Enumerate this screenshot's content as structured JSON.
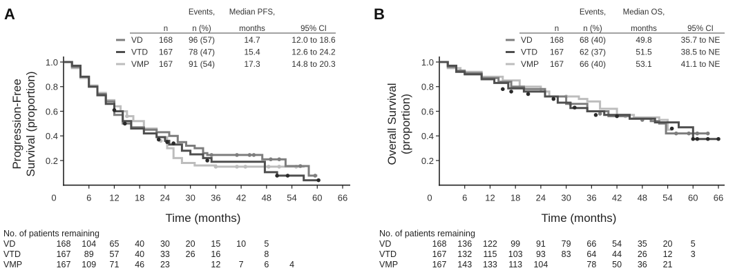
{
  "colors": {
    "VD": "#7d7d7d",
    "VTD": "#4e4e4e",
    "VMP": "#bdbdbd",
    "censor": "#2a2a2a"
  },
  "chart_data": [
    {
      "panel": "A",
      "type": "line",
      "subtype": "kaplan-meier",
      "xlabel": "Time (months)",
      "ylabel_lines": [
        "Progression-Free",
        "Survival (proportion)"
      ],
      "xlim": [
        0,
        66
      ],
      "ylim": [
        0,
        1.0
      ],
      "xticks": [
        "0",
        "6",
        "12",
        "18",
        "24",
        "30",
        "36",
        "42",
        "48",
        "54",
        "60",
        "66"
      ],
      "yticks": [
        "1.0",
        "0.8",
        "0.6",
        "0.4",
        "0.2"
      ],
      "legend": {
        "headers": [
          "n",
          "Events,",
          "n (%)",
          "Median PFS,",
          "months",
          "95% CI"
        ],
        "rows": [
          {
            "arm": "VD",
            "n": "168",
            "events": "96 (57)",
            "median": "14.7",
            "ci": "12.0 to 18.6"
          },
          {
            "arm": "VTD",
            "n": "167",
            "events": "78 (47)",
            "median": "15.4",
            "ci": "12.6 to 24.2"
          },
          {
            "arm": "VMP",
            "n": "167",
            "events": "91 (54)",
            "median": "17.3",
            "ci": "14.8 to 20.3"
          }
        ]
      },
      "series": [
        {
          "name": "VD",
          "points": [
            [
              0,
              1.0
            ],
            [
              2,
              0.96
            ],
            [
              4,
              0.88
            ],
            [
              6,
              0.8
            ],
            [
              8,
              0.74
            ],
            [
              10,
              0.68
            ],
            [
              12,
              0.57
            ],
            [
              14,
              0.5
            ],
            [
              16,
              0.47
            ],
            [
              19,
              0.45
            ],
            [
              22,
              0.43
            ],
            [
              25,
              0.4
            ],
            [
              27,
              0.35
            ],
            [
              29,
              0.32
            ],
            [
              31,
              0.3
            ],
            [
              33,
              0.26
            ],
            [
              34,
              0.245
            ],
            [
              47,
              0.21
            ],
            [
              52.5,
              0.155
            ],
            [
              58,
              0.077
            ],
            [
              60,
              0.077
            ]
          ],
          "censored": [
            [
              35,
              0.245
            ],
            [
              41,
              0.245
            ],
            [
              44,
              0.245
            ],
            [
              45,
              0.245
            ],
            [
              49,
              0.21
            ],
            [
              51,
              0.21
            ],
            [
              56,
              0.155
            ],
            [
              59.5,
              0.077
            ]
          ]
        },
        {
          "name": "VTD",
          "points": [
            [
              0,
              1.0
            ],
            [
              2,
              0.97
            ],
            [
              4,
              0.88
            ],
            [
              6,
              0.8
            ],
            [
              8,
              0.73
            ],
            [
              10,
              0.66
            ],
            [
              12,
              0.6
            ],
            [
              14,
              0.52
            ],
            [
              16,
              0.46
            ],
            [
              19,
              0.42
            ],
            [
              22,
              0.39
            ],
            [
              24,
              0.36
            ],
            [
              25,
              0.33
            ],
            [
              28,
              0.28
            ],
            [
              30,
              0.25
            ],
            [
              33,
              0.22
            ],
            [
              35,
              0.19
            ],
            [
              47.6,
              0.105
            ],
            [
              50.5,
              0.077
            ],
            [
              56.8,
              0.04
            ],
            [
              60.3,
              0.04
            ]
          ],
          "censored": [
            [
              12,
              0.61
            ],
            [
              14.5,
              0.5
            ],
            [
              22.5,
              0.37
            ],
            [
              24.5,
              0.35
            ],
            [
              26,
              0.34
            ],
            [
              34,
              0.2
            ],
            [
              50.5,
              0.077
            ],
            [
              53,
              0.077
            ],
            [
              60.3,
              0.04
            ]
          ]
        },
        {
          "name": "VMP",
          "points": [
            [
              0,
              1.0
            ],
            [
              2,
              0.95
            ],
            [
              4,
              0.87
            ],
            [
              6,
              0.81
            ],
            [
              8,
              0.75
            ],
            [
              10,
              0.69
            ],
            [
              12,
              0.64
            ],
            [
              13.5,
              0.6
            ],
            [
              15,
              0.56
            ],
            [
              16.5,
              0.52
            ],
            [
              19,
              0.46
            ],
            [
              22,
              0.39
            ],
            [
              24.5,
              0.3
            ],
            [
              26,
              0.22
            ],
            [
              28,
              0.18
            ],
            [
              31,
              0.16
            ],
            [
              36,
              0.15
            ],
            [
              57,
              0.15
            ]
          ],
          "censored": [
            [
              15,
              0.56
            ],
            [
              23,
              0.36
            ],
            [
              36,
              0.15
            ],
            [
              41,
              0.15
            ],
            [
              43,
              0.15
            ],
            [
              48.5,
              0.15
            ],
            [
              51,
              0.15
            ],
            [
              55,
              0.15
            ]
          ]
        }
      ],
      "at_risk": {
        "title": "No. of patients remaining",
        "times": [
          0,
          6,
          12,
          18,
          24,
          30,
          36,
          42,
          48,
          54
        ],
        "rows": [
          {
            "arm": "VD",
            "values": [
              "168",
              "104",
              "65",
              "40",
              "30",
              "20",
              "15",
              "10",
              "5",
              ""
            ]
          },
          {
            "arm": "VTD",
            "values": [
              "167",
              "89",
              "57",
              "40",
              "33",
              "26",
              "16",
              "",
              "8",
              ""
            ]
          },
          {
            "arm": "VMP",
            "values": [
              "167",
              "109",
              "71",
              "46",
              "23",
              "",
              "12",
              "7",
              "6",
              "4"
            ]
          }
        ]
      }
    },
    {
      "panel": "B",
      "type": "line",
      "subtype": "kaplan-meier",
      "xlabel": "Time (months)",
      "ylabel_lines": [
        "Overall Survival",
        "(proportion)"
      ],
      "xlim": [
        0,
        66
      ],
      "ylim": [
        0,
        1.0
      ],
      "xticks": [
        "0",
        "6",
        "12",
        "18",
        "24",
        "30",
        "36",
        "42",
        "48",
        "54",
        "60",
        "66"
      ],
      "yticks": [
        "1.0",
        "0.8",
        "0.6",
        "0.4",
        "0.2"
      ],
      "legend": {
        "headers": [
          "n",
          "Events,",
          "n (%)",
          "Median OS,",
          "months",
          "95% CI"
        ],
        "rows": [
          {
            "arm": "VD",
            "n": "168",
            "events": "68 (40)",
            "median": "49.8",
            "ci": "35.7 to NE"
          },
          {
            "arm": "VTD",
            "n": "167",
            "events": "62 (37)",
            "median": "51.5",
            "ci": "38.5 to NE"
          },
          {
            "arm": "VMP",
            "n": "167",
            "events": "66 (40)",
            "median": "53.1",
            "ci": "41.1 to NE"
          }
        ]
      },
      "series": [
        {
          "name": "VD",
          "points": [
            [
              0,
              1.0
            ],
            [
              2,
              0.96
            ],
            [
              4,
              0.93
            ],
            [
              6,
              0.91
            ],
            [
              10,
              0.87
            ],
            [
              14,
              0.84
            ],
            [
              17,
              0.8
            ],
            [
              20,
              0.78
            ],
            [
              25,
              0.72
            ],
            [
              30,
              0.66
            ],
            [
              35,
              0.6
            ],
            [
              40,
              0.56
            ],
            [
              45,
              0.54
            ],
            [
              50,
              0.52
            ],
            [
              52,
              0.5
            ],
            [
              53.6,
              0.42
            ],
            [
              63.5,
              0.42
            ]
          ],
          "censored": [
            [
              31,
              0.66
            ],
            [
              38,
              0.58
            ],
            [
              48,
              0.53
            ],
            [
              56,
              0.42
            ],
            [
              59,
              0.42
            ],
            [
              61,
              0.42
            ],
            [
              63.5,
              0.42
            ]
          ]
        },
        {
          "name": "VTD",
          "points": [
            [
              0,
              1.0
            ],
            [
              2,
              0.97
            ],
            [
              4,
              0.92
            ],
            [
              6,
              0.9
            ],
            [
              10,
              0.86
            ],
            [
              13,
              0.83
            ],
            [
              16.3,
              0.786
            ],
            [
              20,
              0.76
            ],
            [
              25,
              0.72
            ],
            [
              28,
              0.67
            ],
            [
              31,
              0.627
            ],
            [
              35,
              0.6
            ],
            [
              39,
              0.57
            ],
            [
              45,
              0.54
            ],
            [
              51,
              0.51
            ],
            [
              56.6,
              0.47
            ],
            [
              60,
              0.375
            ],
            [
              66,
              0.375
            ]
          ],
          "censored": [
            [
              15,
              0.78
            ],
            [
              17,
              0.76
            ],
            [
              21,
              0.74
            ],
            [
              27,
              0.7
            ],
            [
              32,
              0.63
            ],
            [
              37,
              0.57
            ],
            [
              42,
              0.56
            ],
            [
              55,
              0.46
            ],
            [
              60,
              0.375
            ],
            [
              61,
              0.375
            ],
            [
              63.5,
              0.375
            ],
            [
              66,
              0.375
            ]
          ]
        },
        {
          "name": "VMP",
          "points": [
            [
              0,
              1.0
            ],
            [
              2,
              0.95
            ],
            [
              5,
              0.92
            ],
            [
              10,
              0.88
            ],
            [
              15,
              0.85
            ],
            [
              19,
              0.8
            ],
            [
              24,
              0.76
            ],
            [
              26,
              0.72
            ],
            [
              33,
              0.7
            ],
            [
              35,
              0.68
            ],
            [
              38,
              0.62
            ],
            [
              42,
              0.57
            ],
            [
              46,
              0.55
            ],
            [
              52,
              0.53
            ],
            [
              54,
              0.45
            ],
            [
              55,
              0.45
            ]
          ],
          "censored": [
            [
              12,
              0.87
            ],
            [
              20,
              0.79
            ],
            [
              30,
              0.72
            ],
            [
              44,
              0.56
            ],
            [
              50,
              0.54
            ]
          ]
        }
      ],
      "at_risk": {
        "title": "No. of patients remaining",
        "times": [
          0,
          6,
          12,
          18,
          24,
          30,
          36,
          42,
          48,
          54,
          60
        ],
        "rows": [
          {
            "arm": "VD",
            "values": [
              "168",
              "136",
              "122",
              "99",
              "91",
              "79",
              "66",
              "54",
              "35",
              "20",
              "5"
            ]
          },
          {
            "arm": "VTD",
            "values": [
              "167",
              "132",
              "115",
              "103",
              "93",
              "83",
              "64",
              "44",
              "26",
              "12",
              "3"
            ]
          },
          {
            "arm": "VMP",
            "values": [
              "167",
              "143",
              "133",
              "113",
              "104",
              "",
              "78",
              "50",
              "36",
              "21",
              ""
            ]
          }
        ]
      }
    }
  ]
}
